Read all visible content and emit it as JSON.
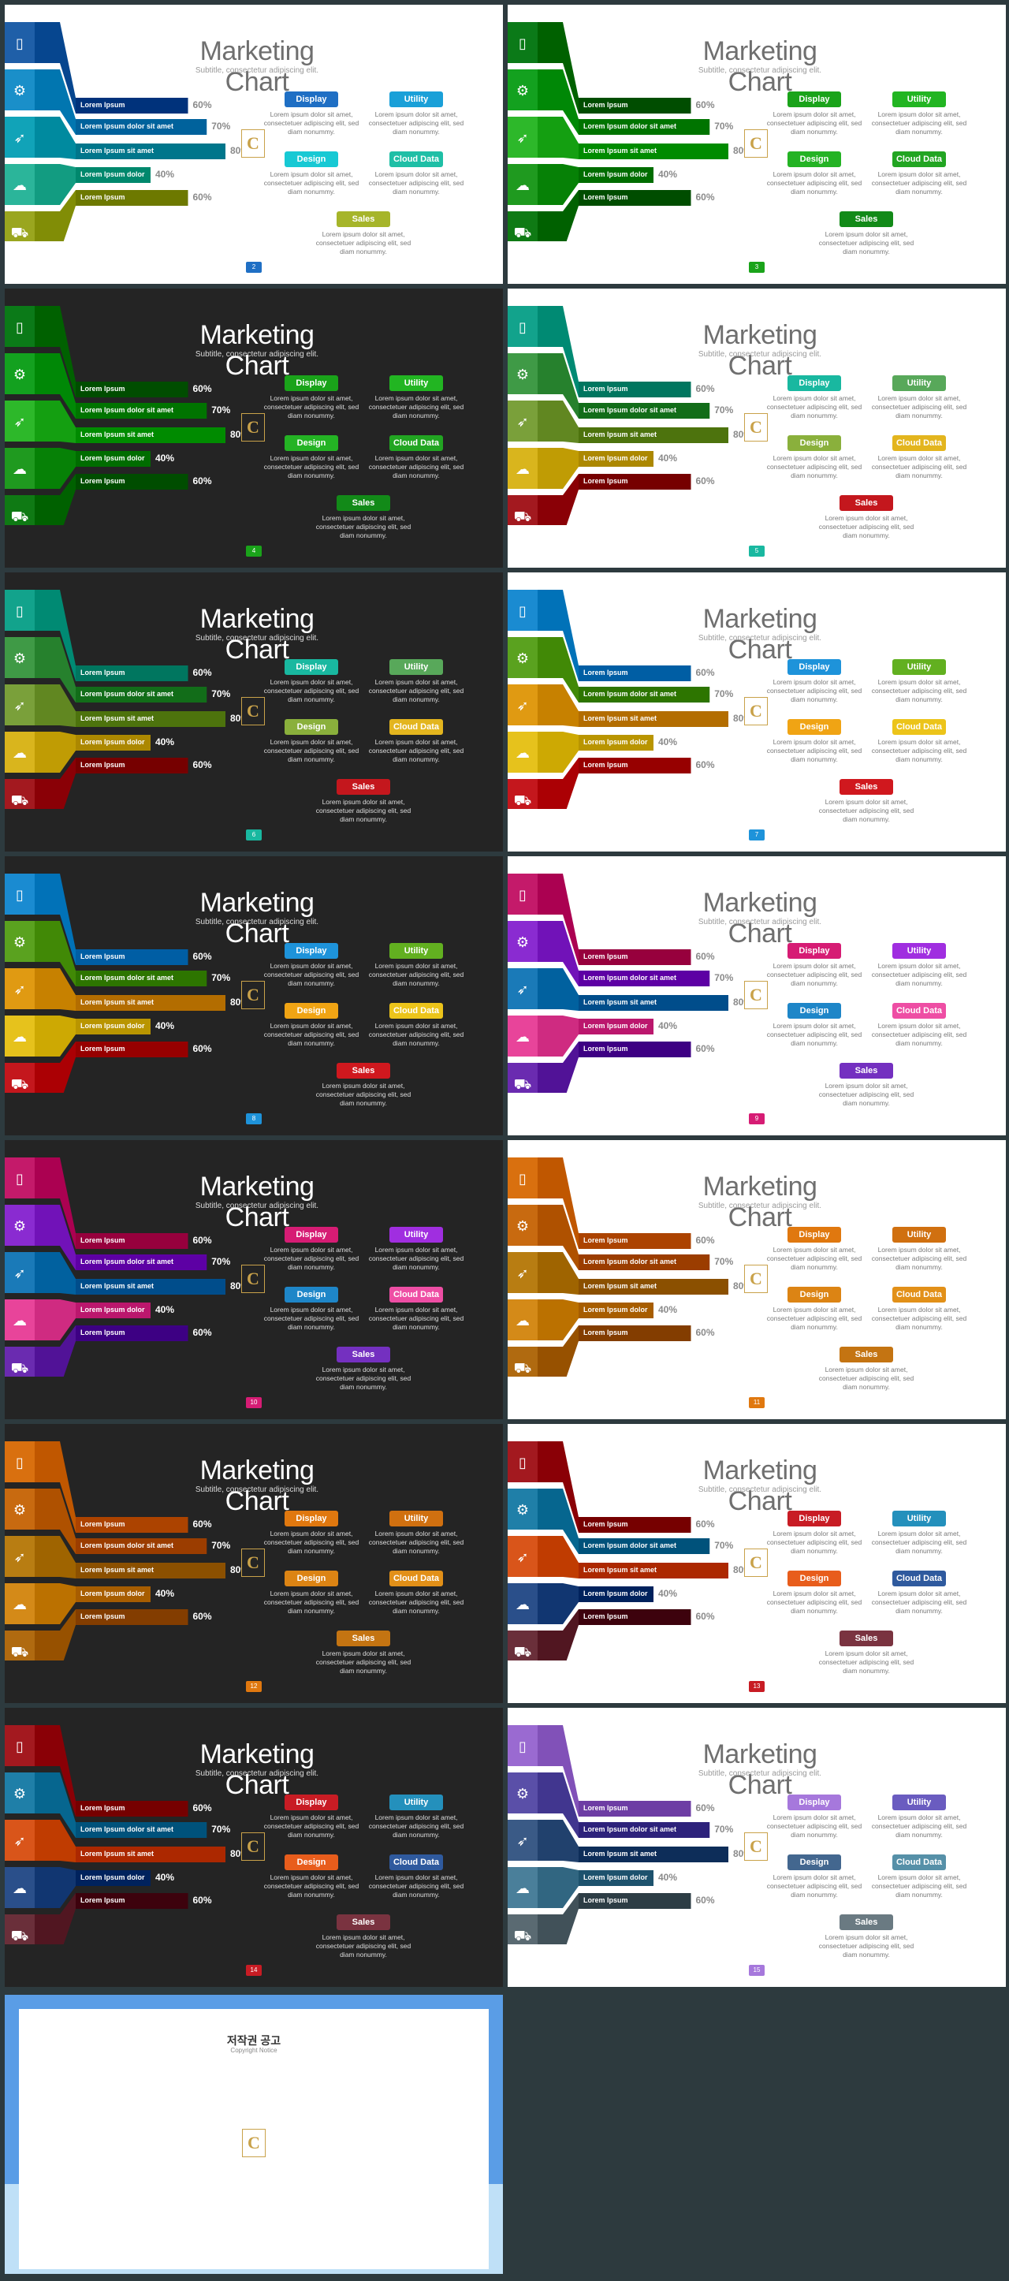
{
  "deck": {
    "title": "Marketing Chart",
    "subtitle": "Subtitle, consectetur adipiscing elit.",
    "logo_letter": "C",
    "bars": [
      {
        "label": "Lorem Ipsum",
        "percent": "60%",
        "value": 60
      },
      {
        "label": "Lorem Ipsum dolor sit amet",
        "percent": "70%",
        "value": 70
      },
      {
        "label": "Lorem Ipsum sit amet",
        "percent": "80%",
        "value": 80
      },
      {
        "label": "Lorem Ipsum dolor",
        "percent": "40%",
        "value": 40
      },
      {
        "label": "Lorem Ipsum",
        "percent": "60%",
        "value": 60
      }
    ],
    "icons": [
      "tablet-icon",
      "gear-icon",
      "rocket-icon",
      "cloud-icon",
      "cart-icon"
    ],
    "tags": [
      "Display",
      "Utility",
      "Design",
      "Cloud Data",
      "Sales"
    ],
    "description": "Lorem ipsum dolor sit amet, consectetuer adipiscing elit, sed diam nonummy."
  },
  "slides": [
    {
      "page": "2",
      "theme": "light",
      "colors": [
        "#1f5fa8",
        "#1a8fc9",
        "#11a3b8",
        "#2bb59a",
        "#9aa61f"
      ],
      "tag_colors": [
        "#1f6fc4",
        "#1aa0d8",
        "#17c9d4",
        "#1fbfa6",
        "#a6b52a"
      ]
    },
    {
      "page": "3",
      "theme": "light",
      "colors": [
        "#0b7a18",
        "#13a11f",
        "#2db82a",
        "#1f9a1f",
        "#0f7a14"
      ],
      "tag_colors": [
        "#1aa31a",
        "#22b522",
        "#24b324",
        "#22a522",
        "#128a18"
      ]
    },
    {
      "page": "4",
      "theme": "dark",
      "colors": [
        "#0b7a18",
        "#13a11f",
        "#2db82a",
        "#1f9a1f",
        "#0f7a14"
      ],
      "tag_colors": [
        "#1aa31a",
        "#22b522",
        "#24b324",
        "#22a522",
        "#128a18"
      ]
    },
    {
      "page": "5",
      "theme": "light",
      "colors": [
        "#12a38c",
        "#3f9a46",
        "#7aa03a",
        "#d9b51d",
        "#a3191f"
      ],
      "tag_colors": [
        "#19b8a0",
        "#58a85a",
        "#8ab03c",
        "#e3b51e",
        "#c4171d"
      ]
    },
    {
      "page": "6",
      "theme": "dark",
      "colors": [
        "#12a38c",
        "#3f9a46",
        "#7aa03a",
        "#d9b51d",
        "#a3191f"
      ],
      "tag_colors": [
        "#19b8a0",
        "#58a85a",
        "#8ab03c",
        "#e3b51e",
        "#c4171d"
      ]
    },
    {
      "page": "7",
      "theme": "light",
      "colors": [
        "#1a8bd1",
        "#5aa21f",
        "#e09a12",
        "#e6c21c",
        "#c4171d"
      ],
      "tag_colors": [
        "#1e93da",
        "#62b020",
        "#f0a414",
        "#ecc41a",
        "#d0181e"
      ]
    },
    {
      "page": "8",
      "theme": "dark",
      "colors": [
        "#1a8bd1",
        "#5aa21f",
        "#e09a12",
        "#e6c21c",
        "#c4171d"
      ],
      "tag_colors": [
        "#1e93da",
        "#62b020",
        "#f0a414",
        "#ecc41a",
        "#d0181e"
      ]
    },
    {
      "page": "9",
      "theme": "light",
      "colors": [
        "#c41a6a",
        "#8a2bd1",
        "#1a7ab8",
        "#e8449a",
        "#6a2bb0"
      ],
      "tag_colors": [
        "#d61c74",
        "#a02ee0",
        "#1e86c8",
        "#ee4ea4",
        "#7430c0"
      ]
    },
    {
      "page": "10",
      "theme": "dark",
      "colors": [
        "#c41a6a",
        "#8a2bd1",
        "#1a7ab8",
        "#e8449a",
        "#6a2bb0"
      ],
      "tag_colors": [
        "#d61c74",
        "#a02ee0",
        "#1e86c8",
        "#ee4ea4",
        "#7430c0"
      ]
    },
    {
      "page": "11",
      "theme": "light",
      "colors": [
        "#d9700f",
        "#c86a10",
        "#b87d12",
        "#d48a18",
        "#b06a10"
      ],
      "tag_colors": [
        "#e0780f",
        "#d07010",
        "#dc8414",
        "#e29018",
        "#c47412"
      ]
    },
    {
      "page": "12",
      "theme": "dark",
      "colors": [
        "#d9700f",
        "#c86a10",
        "#b87d12",
        "#d48a18",
        "#b06a10"
      ],
      "tag_colors": [
        "#e0780f",
        "#d07010",
        "#dc8414",
        "#e29018",
        "#c47412"
      ]
    },
    {
      "page": "13",
      "theme": "light",
      "colors": [
        "#a3191f",
        "#1f7fa8",
        "#d9551a",
        "#2a4f8a",
        "#6a2f3a"
      ],
      "tag_colors": [
        "#c81c24",
        "#2490bc",
        "#e85d1c",
        "#2f5a9e",
        "#7a3340"
      ]
    },
    {
      "page": "14",
      "theme": "dark",
      "colors": [
        "#a3191f",
        "#1f7fa8",
        "#d9551a",
        "#2a4f8a",
        "#6a2f3a"
      ],
      "tag_colors": [
        "#c81c24",
        "#2490bc",
        "#e85d1c",
        "#2f5a9e",
        "#7a3340"
      ]
    },
    {
      "page": "15",
      "theme": "light",
      "colors": [
        "#9a6ad1",
        "#5a4fa8",
        "#3a5a86",
        "#4a7f9a",
        "#5a6a72"
      ],
      "tag_colors": [
        "#a678dc",
        "#6a5cc0",
        "#43678f",
        "#5690a8",
        "#6a7a82"
      ]
    }
  ],
  "notice": {
    "title": "저작권 공고",
    "subtitle": "Copyright Notice"
  }
}
